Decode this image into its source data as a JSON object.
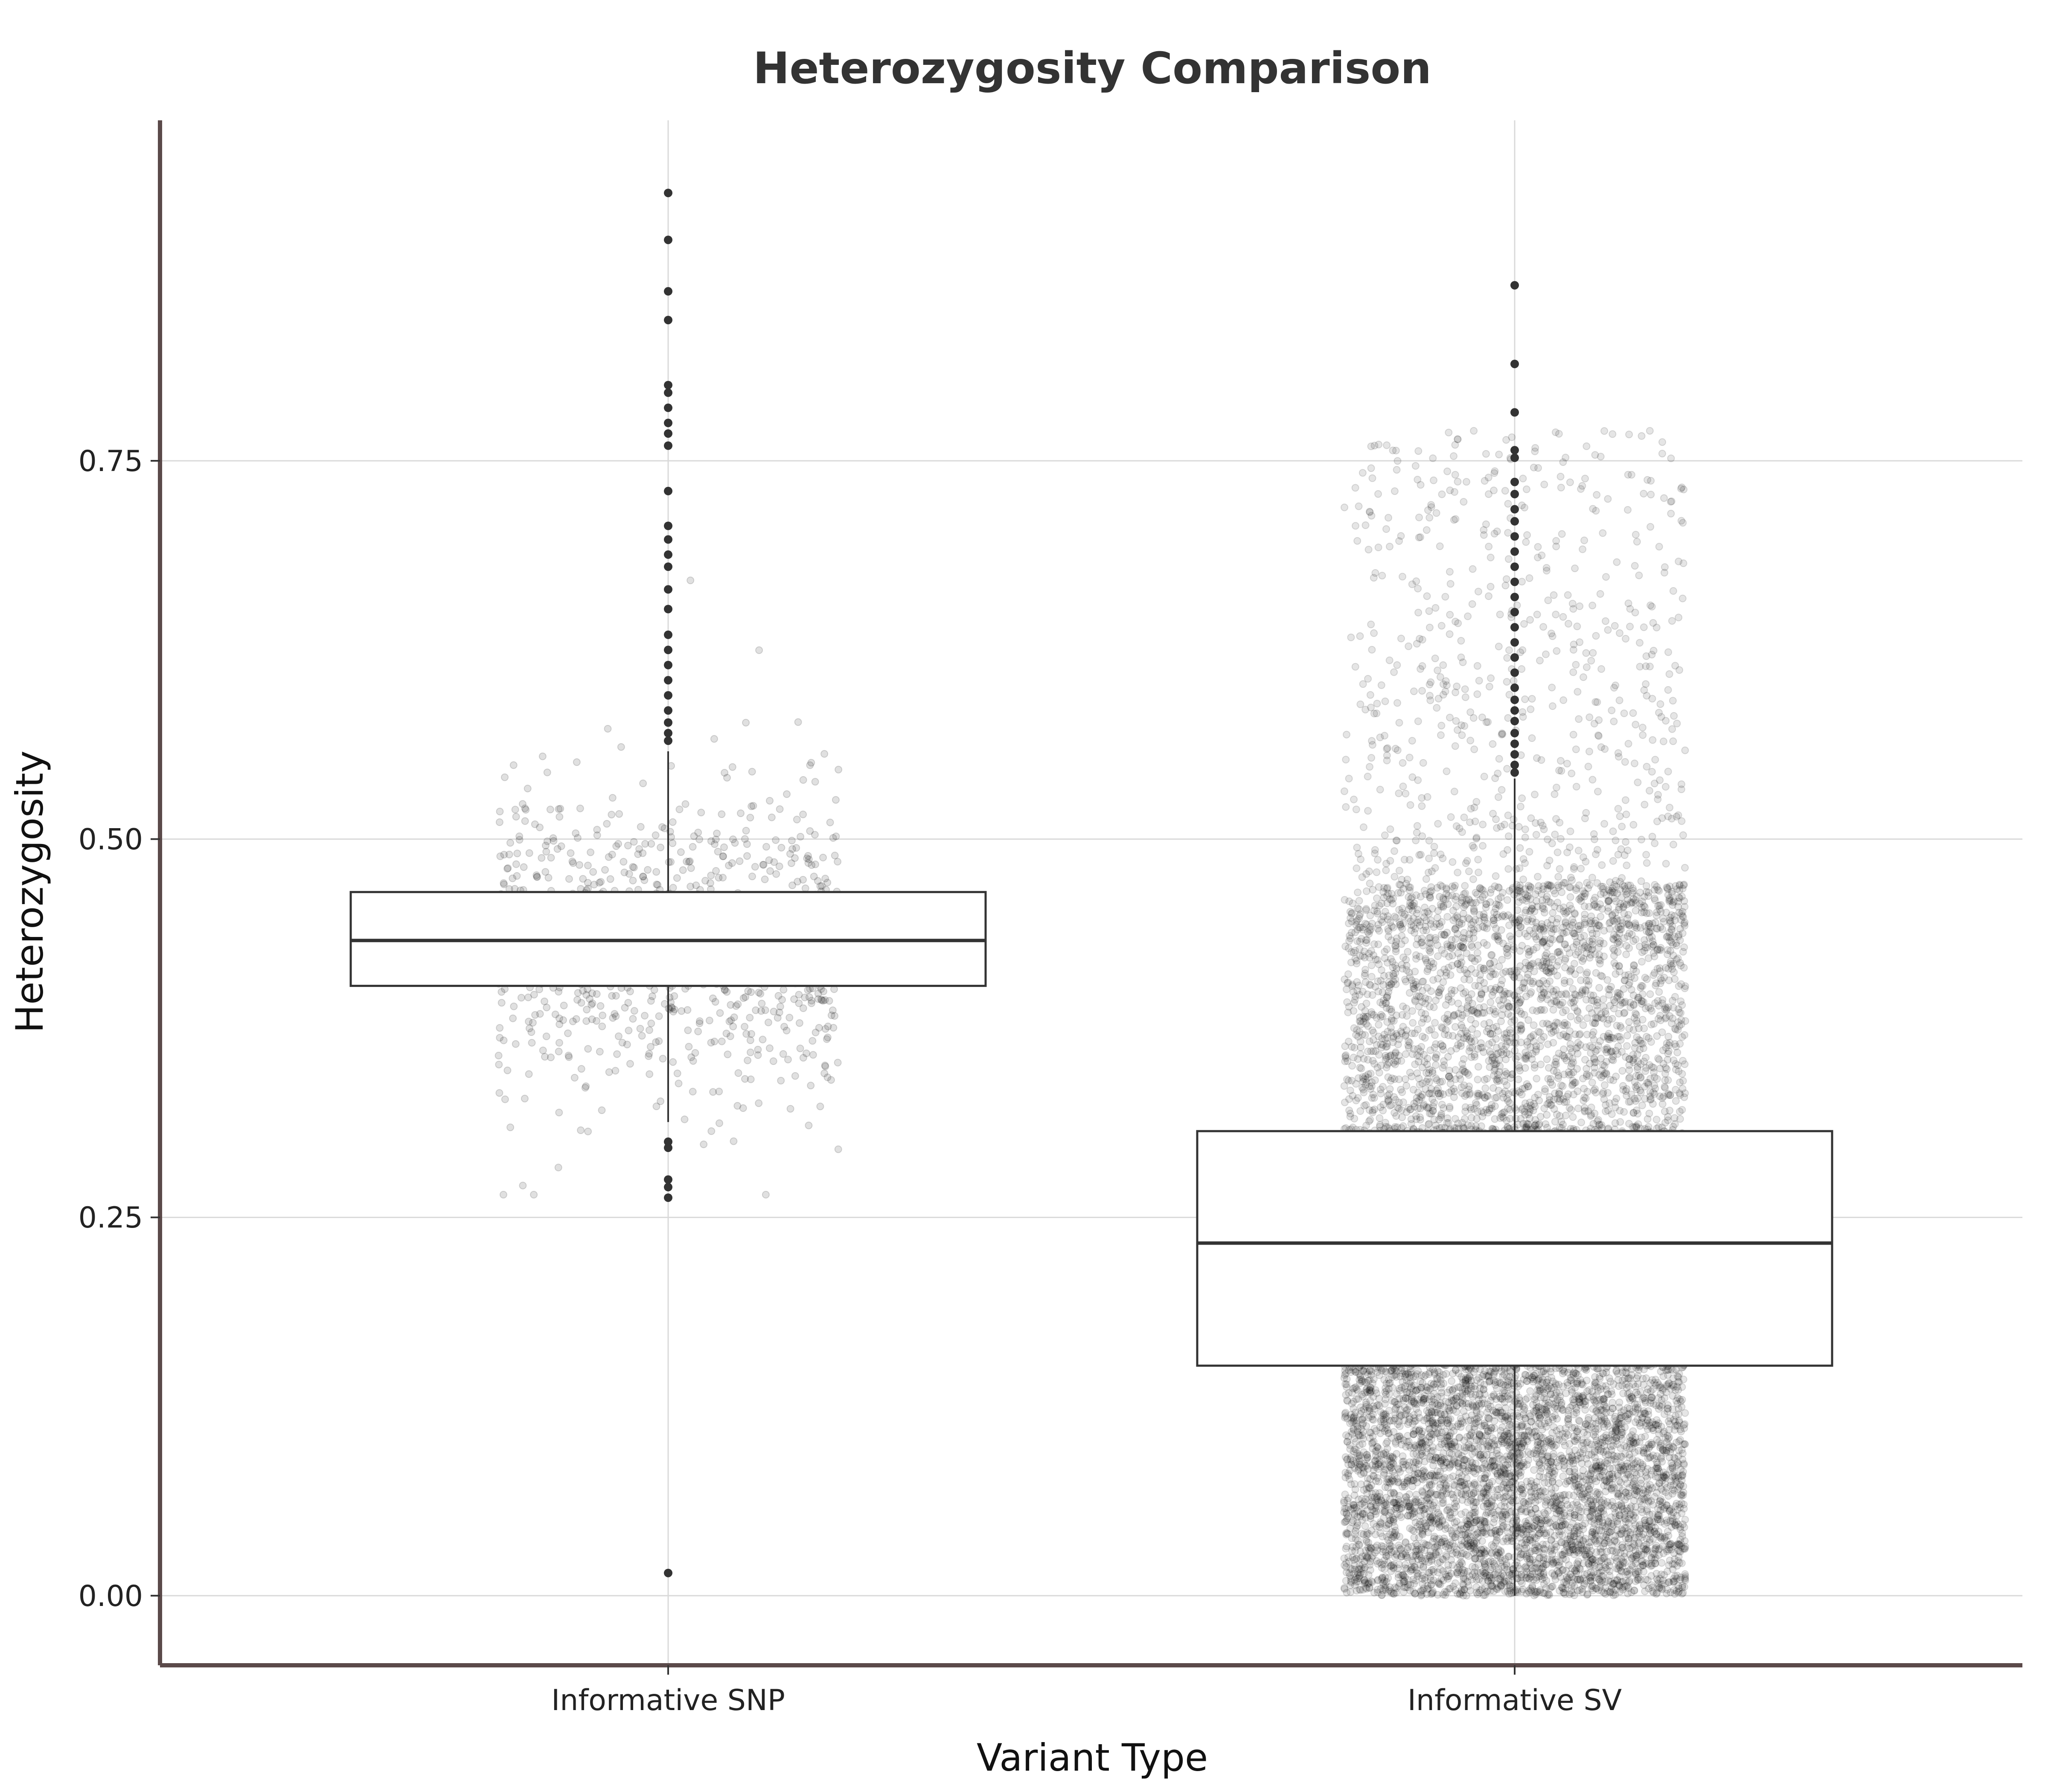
{
  "chart_data": {
    "type": "box",
    "title": "Heterozygosity Comparison",
    "xlabel": "Variant Type",
    "ylabel": "Heterozygosity",
    "categories": [
      "Informative SNP",
      "Informative SV"
    ],
    "y_ticks": [
      0.0,
      0.25,
      0.5,
      0.75
    ],
    "y_tick_labels": [
      "0.00",
      "0.25",
      "0.50",
      "0.75"
    ],
    "ylim": [
      -0.046,
      0.975
    ],
    "grid": true,
    "legend": "none",
    "boxes": [
      {
        "category": "Informative SNP",
        "lower_whisker": 0.313,
        "q1": 0.403,
        "median": 0.433,
        "q3": 0.465,
        "upper_whisker": 0.558,
        "outliers": [
          0.927,
          0.896,
          0.862,
          0.843,
          0.8,
          0.795,
          0.785,
          0.775,
          0.768,
          0.76,
          0.73,
          0.707,
          0.698,
          0.688,
          0.68,
          0.665,
          0.652,
          0.635,
          0.625,
          0.615,
          0.605,
          0.595,
          0.585,
          0.577,
          0.57,
          0.565,
          0.3,
          0.296,
          0.275,
          0.27,
          0.263,
          0.015
        ],
        "jitter_points": 1000,
        "jitter_range": [
          0.265,
          0.93
        ]
      },
      {
        "category": "Informative SV",
        "lower_whisker": 0.0,
        "q1": 0.152,
        "median": 0.233,
        "q3": 0.307,
        "upper_whisker": 0.54,
        "outliers": [
          0.866,
          0.814,
          0.782,
          0.757,
          0.752,
          0.736,
          0.728,
          0.718,
          0.71,
          0.7,
          0.69,
          0.68,
          0.67,
          0.66,
          0.65,
          0.64,
          0.63,
          0.62,
          0.61,
          0.6,
          0.592,
          0.585,
          0.578,
          0.57,
          0.563,
          0.556,
          0.549,
          0.544
        ],
        "jitter_points": 12000,
        "jitter_range": [
          0.0,
          0.866
        ]
      }
    ],
    "colors": {
      "box_fill": "#ffffff",
      "box_stroke": "#333333",
      "points": "#000000",
      "grid": "#d9d9d9",
      "axis": "#5b4a4a",
      "title": "#333333"
    }
  }
}
